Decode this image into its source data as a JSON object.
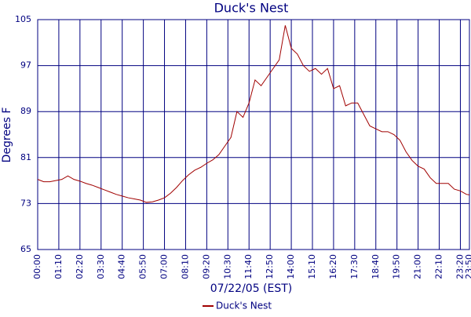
{
  "chart_data": {
    "type": "line",
    "title": "Duck's Nest",
    "x_label": "07/22/05 (EST)",
    "y_label": "Degrees F",
    "x": [
      0,
      20,
      40,
      60,
      80,
      100,
      120,
      140,
      160,
      180,
      200,
      220,
      240,
      260,
      280,
      300,
      320,
      340,
      360,
      380,
      400,
      420,
      440,
      460,
      480,
      500,
      520,
      540,
      560,
      580,
      600,
      620,
      640,
      660,
      680,
      700,
      720,
      740,
      760,
      780,
      800,
      820,
      840,
      860,
      880,
      900,
      920,
      940,
      960,
      980,
      1000,
      1020,
      1040,
      1060,
      1080,
      1100,
      1120,
      1140,
      1160,
      1180,
      1200,
      1220,
      1240,
      1260,
      1280,
      1300,
      1320,
      1340,
      1360,
      1380,
      1400,
      1420,
      1430
    ],
    "series": [
      {
        "name": "Duck's Nest",
        "color": "#a00000",
        "values": [
          77.2,
          76.8,
          76.8,
          77,
          77.2,
          77.8,
          77.2,
          76.9,
          76.5,
          76.2,
          75.8,
          75.4,
          75,
          74.6,
          74.3,
          74,
          73.8,
          73.6,
          73.2,
          73.3,
          73.6,
          74,
          74.8,
          75.8,
          77,
          78,
          78.8,
          79.3,
          80,
          80.6,
          81.5,
          83,
          84.5,
          89,
          88,
          90.5,
          94.5,
          93.5,
          95,
          96.5,
          98,
          104,
          100,
          99,
          97,
          96,
          96.5,
          95.5,
          96.5,
          93,
          93.5,
          90,
          90.5,
          90.5,
          88.5,
          86.5,
          86,
          85.5,
          85.5,
          85,
          84,
          82,
          80.5,
          79.5,
          79,
          77.5,
          76.5,
          76.5,
          76.5,
          75.5,
          75.2,
          74.6,
          74.5
        ]
      }
    ],
    "xlim": [
      0,
      1430
    ],
    "xticks": [
      {
        "value": 0,
        "label": "00:00"
      },
      {
        "value": 70,
        "label": "01:10"
      },
      {
        "value": 140,
        "label": "02:20"
      },
      {
        "value": 210,
        "label": "03:30"
      },
      {
        "value": 280,
        "label": "04:40"
      },
      {
        "value": 350,
        "label": "05:50"
      },
      {
        "value": 420,
        "label": "07:00"
      },
      {
        "value": 490,
        "label": "08:10"
      },
      {
        "value": 560,
        "label": "09:20"
      },
      {
        "value": 630,
        "label": "10:30"
      },
      {
        "value": 700,
        "label": "11:40"
      },
      {
        "value": 770,
        "label": "12:50"
      },
      {
        "value": 840,
        "label": "14:00"
      },
      {
        "value": 910,
        "label": "15:10"
      },
      {
        "value": 980,
        "label": "16:20"
      },
      {
        "value": 1050,
        "label": "17:30"
      },
      {
        "value": 1120,
        "label": "18:40"
      },
      {
        "value": 1190,
        "label": "19:50"
      },
      {
        "value": 1260,
        "label": "21:00"
      },
      {
        "value": 1330,
        "label": "22:10"
      },
      {
        "value": 1400,
        "label": "23:20"
      },
      {
        "value": 1430,
        "label": "23:50"
      }
    ],
    "ylim": [
      65,
      105
    ],
    "yticks": [
      65,
      73,
      81,
      89,
      97,
      105
    ],
    "grid": true,
    "legend": "bottom"
  }
}
